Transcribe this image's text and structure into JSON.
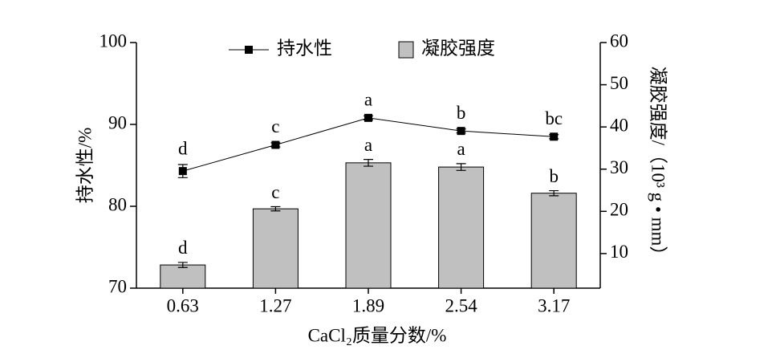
{
  "chart_data": {
    "type": "bar_line",
    "x_label": "CaCl₂质量分数/%",
    "y_label": "持水性/%",
    "y2_label": "凝胶强度/（10³ g • mm）",
    "categories": [
      "0.63",
      "1.27",
      "1.89",
      "2.54",
      "3.17"
    ],
    "ylim": [
      70,
      100
    ],
    "yticks": [
      70,
      80,
      90,
      100
    ],
    "y2lim": [
      1.8,
      60
    ],
    "y2ticks": [
      10,
      20,
      30,
      40,
      50,
      60
    ],
    "legend": "top",
    "series": [
      {
        "name": "持水性",
        "type": "line",
        "color": "#000000",
        "axis": "y",
        "values": [
          84.3,
          87.5,
          90.8,
          89.2,
          88.5
        ],
        "errors": [
          0.8,
          0.25,
          0.25,
          0.25,
          0.25
        ],
        "letters": [
          "d",
          "c",
          "a",
          "b",
          "bc"
        ]
      },
      {
        "name": "凝胶强度",
        "type": "bar",
        "color": "#c0c0c0",
        "axis": "y2",
        "values": [
          7.3,
          20.6,
          31.5,
          30.5,
          24.3
        ],
        "errors": [
          0.6,
          0.5,
          0.8,
          0.8,
          0.6
        ],
        "letters": [
          "d",
          "c",
          "a",
          "a",
          "b"
        ]
      }
    ]
  }
}
